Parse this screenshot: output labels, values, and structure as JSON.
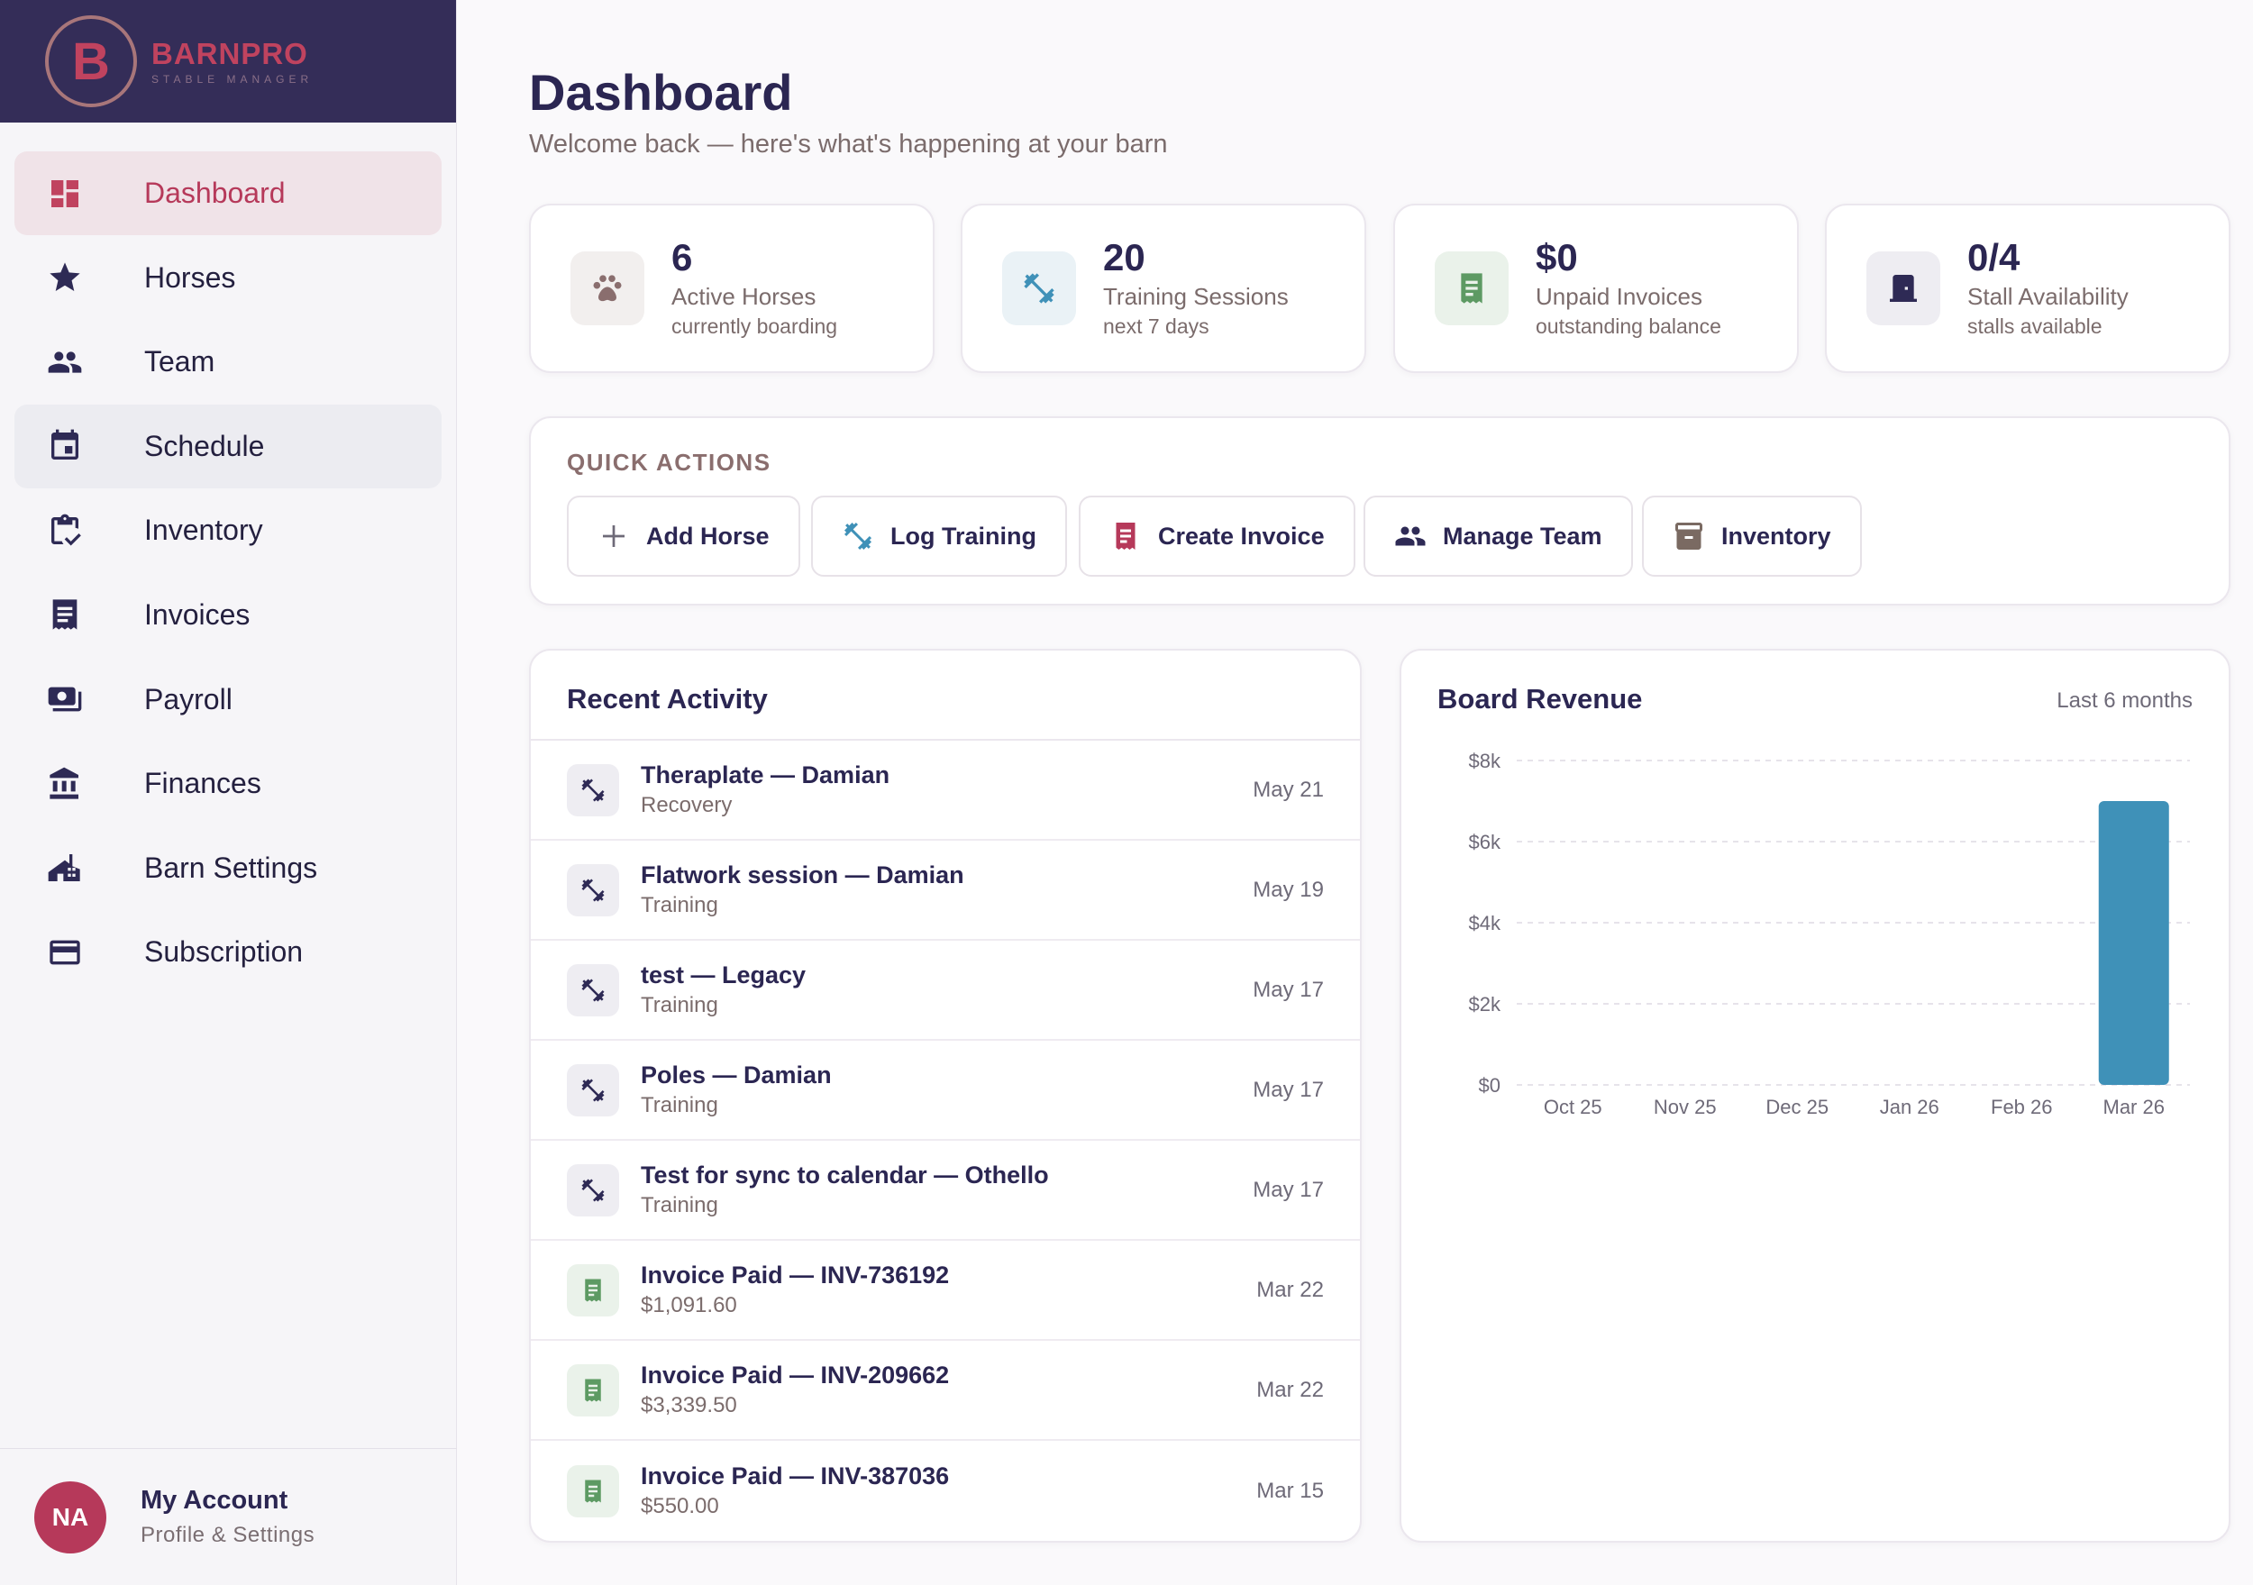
{
  "brand": {
    "logo_letter": "B",
    "name": "BARNPRO",
    "tagline": "STABLE MANAGER"
  },
  "sidebar": {
    "items": [
      {
        "label": "Dashboard",
        "icon": "dashboard-icon"
      },
      {
        "label": "Horses",
        "icon": "star-icon"
      },
      {
        "label": "Team",
        "icon": "people-icon"
      },
      {
        "label": "Schedule",
        "icon": "calendar-icon"
      },
      {
        "label": "Inventory",
        "icon": "clipboard-check-icon"
      },
      {
        "label": "Invoices",
        "icon": "receipt-icon"
      },
      {
        "label": "Payroll",
        "icon": "cash-icon"
      },
      {
        "label": "Finances",
        "icon": "bank-icon"
      },
      {
        "label": "Barn Settings",
        "icon": "barn-icon"
      },
      {
        "label": "Subscription",
        "icon": "credit-card-icon"
      }
    ],
    "active": "Dashboard"
  },
  "account": {
    "initials": "NA",
    "name": "My Account",
    "subtitle": "Profile & Settings"
  },
  "header": {
    "title": "Dashboard",
    "subtitle": "Welcome back — here's what's happening at your barn"
  },
  "stats": [
    {
      "value": "6",
      "label": "Active Horses",
      "sub": "currently boarding",
      "icon": "paw-icon"
    },
    {
      "value": "20",
      "label": "Training Sessions",
      "sub": "next 7 days",
      "icon": "dumbbell-icon"
    },
    {
      "value": "$0",
      "label": "Unpaid Invoices",
      "sub": "outstanding balance",
      "icon": "receipt-icon"
    },
    {
      "value": "0/4",
      "label": "Stall Availability",
      "sub": "stalls available",
      "icon": "door-icon"
    }
  ],
  "quick_actions": {
    "title": "QUICK ACTIONS",
    "buttons": [
      {
        "label": "Add Horse",
        "icon": "plus-icon"
      },
      {
        "label": "Log Training",
        "icon": "dumbbell-icon"
      },
      {
        "label": "Create Invoice",
        "icon": "receipt-icon"
      },
      {
        "label": "Manage Team",
        "icon": "people-icon"
      },
      {
        "label": "Inventory",
        "icon": "archive-icon"
      }
    ]
  },
  "activity": {
    "title": "Recent Activity",
    "items": [
      {
        "title": "Theraplate — Damian",
        "sub": "Recovery",
        "date": "May 21",
        "type": "training"
      },
      {
        "title": "Flatwork session — Damian",
        "sub": "Training",
        "date": "May 19",
        "type": "training"
      },
      {
        "title": "test — Legacy",
        "sub": "Training",
        "date": "May 17",
        "type": "training"
      },
      {
        "title": "Poles — Damian",
        "sub": "Training",
        "date": "May 17",
        "type": "training"
      },
      {
        "title": "Test for sync to calendar — Othello",
        "sub": "Training",
        "date": "May 17",
        "type": "training"
      },
      {
        "title": "Invoice Paid — INV-736192",
        "sub": "$1,091.60",
        "date": "Mar 22",
        "type": "invoice"
      },
      {
        "title": "Invoice Paid — INV-209662",
        "sub": "$3,339.50",
        "date": "Mar 22",
        "type": "invoice"
      },
      {
        "title": "Invoice Paid — INV-387036",
        "sub": "$550.00",
        "date": "Mar 15",
        "type": "invoice"
      }
    ]
  },
  "revenue": {
    "title": "Board Revenue",
    "range": "Last 6 months",
    "bar_color": "#3f91b8"
  },
  "chart_data": {
    "type": "bar",
    "title": "Board Revenue",
    "categories": [
      "Oct 25",
      "Nov 25",
      "Dec 25",
      "Jan 26",
      "Feb 26",
      "Mar 26"
    ],
    "values": [
      0,
      0,
      0,
      0,
      0,
      7000
    ],
    "yticks": [
      "$0",
      "$2k",
      "$4k",
      "$6k",
      "$8k"
    ],
    "ylim": [
      0,
      8000
    ],
    "grid": true
  }
}
